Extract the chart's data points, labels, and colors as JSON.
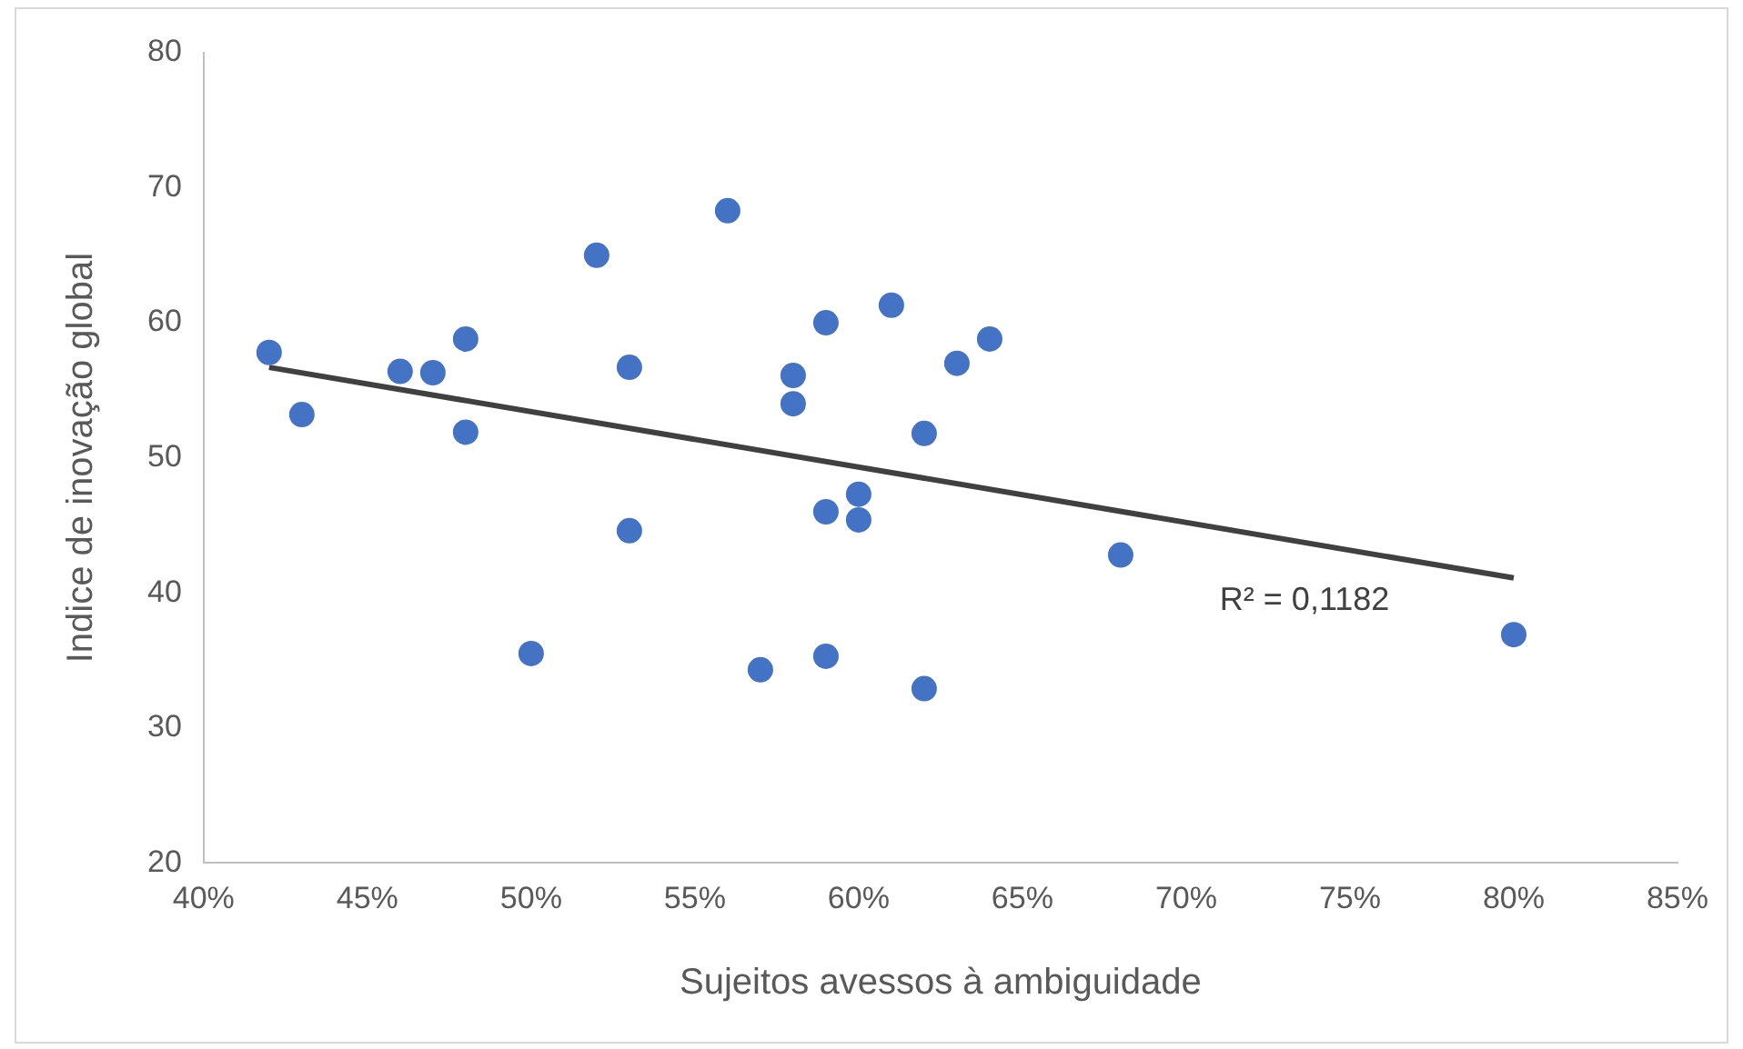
{
  "chart_data": {
    "type": "scatter",
    "xlabel": "Sujeitos avessos à ambiguidade",
    "ylabel": "Indice de inovação global",
    "xlim": [
      40,
      85
    ],
    "xticks": [
      {
        "value": 40,
        "label": "40%"
      },
      {
        "value": 45,
        "label": "45%"
      },
      {
        "value": 50,
        "label": "50%"
      },
      {
        "value": 55,
        "label": "55%"
      },
      {
        "value": 60,
        "label": "60%"
      },
      {
        "value": 65,
        "label": "65%"
      },
      {
        "value": 70,
        "label": "70%"
      },
      {
        "value": 75,
        "label": "75%"
      },
      {
        "value": 80,
        "label": "80%"
      },
      {
        "value": 85,
        "label": "85%"
      }
    ],
    "ylim": [
      20,
      80
    ],
    "yticks": [
      20,
      30,
      40,
      50,
      60,
      70,
      80
    ],
    "grid": false,
    "legend": false,
    "series": [
      {
        "marker": "circle",
        "color": "#4472c4",
        "x": [
          42,
          43,
          46,
          47,
          48,
          48,
          50,
          52,
          53,
          53,
          56,
          57,
          58,
          58,
          59,
          59,
          59,
          60,
          60,
          61,
          62,
          62,
          63,
          64,
          68,
          80
        ],
        "values": [
          57.8,
          53.2,
          56.4,
          56.3,
          58.8,
          51.9,
          35.5,
          65.0,
          56.7,
          44.6,
          68.3,
          34.3,
          56.1,
          54.0,
          60.0,
          46.0,
          35.3,
          47.3,
          45.4,
          61.3,
          51.8,
          32.9,
          57.0,
          58.8,
          42.8,
          36.9
        ]
      },
      {
        "type": "line",
        "marker": "none",
        "color": "#404040",
        "x": [
          42,
          80
        ],
        "values": [
          56.7,
          41.1
        ]
      }
    ],
    "annotations": [
      "R² = 0,1182"
    ]
  }
}
